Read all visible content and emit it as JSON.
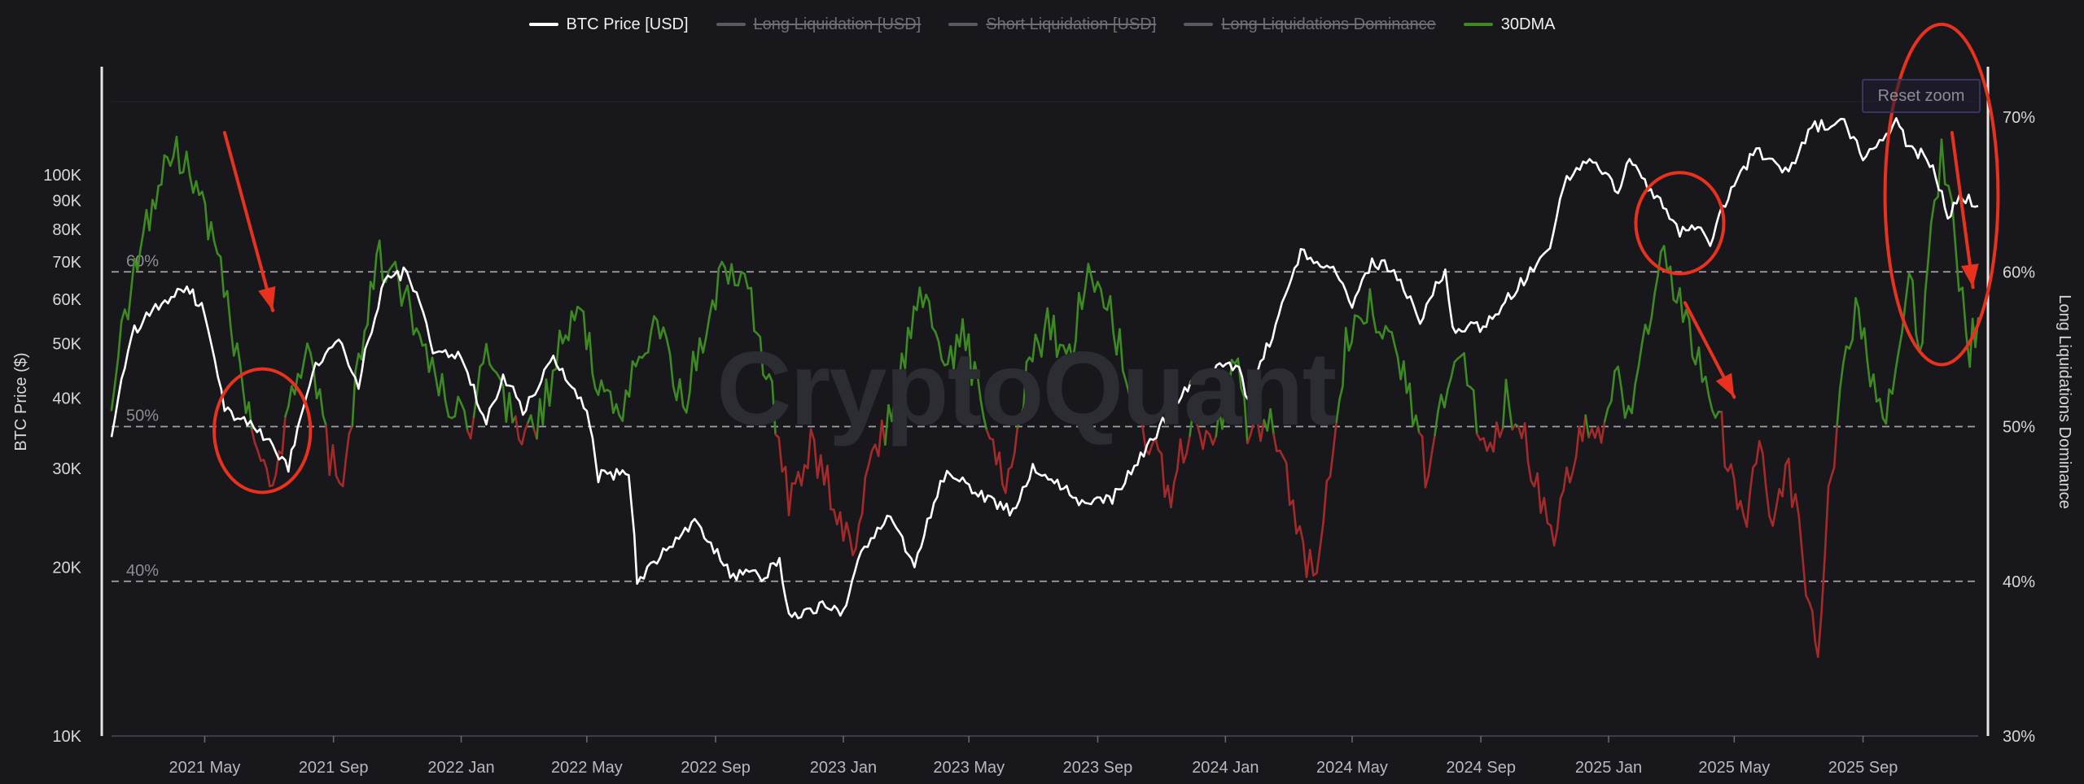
{
  "legend": [
    {
      "label": "BTC Price [USD]",
      "color": "#ffffff",
      "active": true
    },
    {
      "label": "Long Liquidation [USD]",
      "color": "#5a5a62",
      "active": false
    },
    {
      "label": "Short Liquidation [USD]",
      "color": "#5a5a62",
      "active": false
    },
    {
      "label": "Long Liquidations Dominance",
      "color": "#5a5a62",
      "active": false
    },
    {
      "label": "30DMA",
      "color": "#3e8a22",
      "active": true
    }
  ],
  "reset_zoom_label": "Reset zoom",
  "watermark": "CryptoQuant",
  "chart_data": {
    "type": "line",
    "y_left": {
      "label": "BTC Price ($)",
      "scale": "log",
      "ticks": [
        "10K",
        "20K",
        "30K",
        "40K",
        "50K",
        "60K",
        "70K",
        "80K",
        "90K",
        "100K"
      ],
      "tick_values": [
        10000,
        20000,
        30000,
        40000,
        50000,
        60000,
        70000,
        80000,
        90000,
        100000
      ],
      "range": [
        10000,
        135000
      ]
    },
    "y_right": {
      "label": "Long Liquidations Dominance",
      "ticks": [
        "30%",
        "40%",
        "50%",
        "60%",
        "70%"
      ],
      "tick_values": [
        30,
        40,
        50,
        60,
        70
      ],
      "range": [
        30,
        71
      ]
    },
    "x": {
      "ticks": [
        "2021 May",
        "2021 Sep",
        "2022 Jan",
        "2022 May",
        "2022 Sep",
        "2023 Jan",
        "2023 May",
        "2023 Sep",
        "2024 Jan",
        "2024 May",
        "2024 Sep",
        "2025 Jan",
        "2025 May",
        "2025 Sep"
      ],
      "tick_dates": [
        "2021-05-01",
        "2021-09-01",
        "2022-01-01",
        "2022-05-01",
        "2022-09-01",
        "2023-01-01",
        "2023-05-01",
        "2023-09-01",
        "2024-01-01",
        "2024-05-01",
        "2024-09-01",
        "2025-01-01",
        "2025-05-01",
        "2025-09-01"
      ],
      "range": [
        "2021-02-01",
        "2025-12-20"
      ]
    },
    "reference_lines": [
      {
        "value": 60,
        "label": "60%"
      },
      {
        "value": 50,
        "label": "50%"
      },
      {
        "value": 40,
        "label": "40%"
      }
    ],
    "series": [
      {
        "name": "BTC Price [USD]",
        "axis": "left",
        "color": "#ffffff",
        "points": [
          [
            "2021-02-01",
            34000
          ],
          [
            "2021-02-20",
            52000
          ],
          [
            "2021-03-15",
            58000
          ],
          [
            "2021-04-14",
            63000
          ],
          [
            "2021-05-01",
            57000
          ],
          [
            "2021-05-20",
            38000
          ],
          [
            "2021-06-20",
            35000
          ],
          [
            "2021-07-20",
            30000
          ],
          [
            "2021-08-15",
            46000
          ],
          [
            "2021-09-06",
            51000
          ],
          [
            "2021-09-25",
            42000
          ],
          [
            "2021-10-20",
            65000
          ],
          [
            "2021-11-10",
            67000
          ],
          [
            "2021-12-05",
            49000
          ],
          [
            "2022-01-01",
            47000
          ],
          [
            "2022-01-25",
            36000
          ],
          [
            "2022-02-10",
            44000
          ],
          [
            "2022-03-01",
            38000
          ],
          [
            "2022-03-30",
            47000
          ],
          [
            "2022-05-01",
            38000
          ],
          [
            "2022-05-12",
            29000
          ],
          [
            "2022-06-10",
            29500
          ],
          [
            "2022-06-18",
            19000
          ],
          [
            "2022-07-01",
            20000
          ],
          [
            "2022-08-12",
            24000
          ],
          [
            "2022-09-15",
            19500
          ],
          [
            "2022-10-15",
            19200
          ],
          [
            "2022-11-01",
            20500
          ],
          [
            "2022-11-10",
            16500
          ],
          [
            "2022-12-15",
            17000
          ],
          [
            "2023-01-01",
            16600
          ],
          [
            "2023-01-15",
            21000
          ],
          [
            "2023-02-15",
            24500
          ],
          [
            "2023-03-10",
            20000
          ],
          [
            "2023-04-10",
            30000
          ],
          [
            "2023-05-10",
            27000
          ],
          [
            "2023-06-15",
            25000
          ],
          [
            "2023-07-01",
            30500
          ],
          [
            "2023-08-17",
            26000
          ],
          [
            "2023-09-15",
            26500
          ],
          [
            "2023-10-24",
            34000
          ],
          [
            "2023-12-05",
            44000
          ],
          [
            "2024-01-11",
            46000
          ],
          [
            "2024-01-23",
            39500
          ],
          [
            "2024-02-15",
            52000
          ],
          [
            "2024-03-13",
            73000
          ],
          [
            "2024-04-10",
            69000
          ],
          [
            "2024-05-01",
            58000
          ],
          [
            "2024-05-20",
            70000
          ],
          [
            "2024-06-10",
            68000
          ],
          [
            "2024-07-05",
            55000
          ],
          [
            "2024-07-29",
            68000
          ],
          [
            "2024-08-05",
            53000
          ],
          [
            "2024-09-06",
            54000
          ],
          [
            "2024-10-15",
            66000
          ],
          [
            "2024-11-06",
            75000
          ],
          [
            "2024-11-22",
            98000
          ],
          [
            "2024-12-17",
            106000
          ],
          [
            "2025-01-10",
            94000
          ],
          [
            "2025-01-21",
            105000
          ],
          [
            "2025-02-25",
            86000
          ],
          [
            "2025-03-10",
            79000
          ],
          [
            "2025-03-30",
            82000
          ],
          [
            "2025-04-08",
            76000
          ],
          [
            "2025-05-01",
            96000
          ],
          [
            "2025-05-22",
            111000
          ],
          [
            "2025-06-22",
            100000
          ],
          [
            "2025-07-14",
            122000
          ],
          [
            "2025-08-14",
            123000
          ],
          [
            "2025-09-01",
            108000
          ],
          [
            "2025-09-20",
            116000
          ],
          [
            "2025-10-06",
            125000
          ],
          [
            "2025-10-15",
            110000
          ],
          [
            "2025-11-01",
            109000
          ],
          [
            "2025-11-21",
            85000
          ],
          [
            "2025-12-05",
            92000
          ],
          [
            "2025-12-20",
            88000
          ]
        ]
      },
      {
        "name": "30DMA",
        "axis": "right",
        "color_above": "#3e8a22",
        "color_below": "#a52a2a",
        "threshold": 50,
        "points": [
          [
            "2021-02-01",
            52
          ],
          [
            "2021-02-20",
            59
          ],
          [
            "2021-03-15",
            65
          ],
          [
            "2021-04-01",
            68
          ],
          [
            "2021-04-20",
            66
          ],
          [
            "2021-05-10",
            62
          ],
          [
            "2021-06-01",
            54
          ],
          [
            "2021-06-15",
            50
          ],
          [
            "2021-07-05",
            46
          ],
          [
            "2021-07-20",
            52
          ],
          [
            "2021-08-10",
            56
          ],
          [
            "2021-08-25",
            49
          ],
          [
            "2021-09-10",
            45
          ],
          [
            "2021-09-25",
            54
          ],
          [
            "2021-10-15",
            61
          ],
          [
            "2021-11-05",
            59
          ],
          [
            "2021-11-25",
            55
          ],
          [
            "2021-12-20",
            52
          ],
          [
            "2022-01-10",
            50
          ],
          [
            "2022-01-25",
            56
          ],
          [
            "2022-02-10",
            52
          ],
          [
            "2022-02-28",
            49
          ],
          [
            "2022-03-20",
            51
          ],
          [
            "2022-04-05",
            55
          ],
          [
            "2022-04-25",
            58
          ],
          [
            "2022-05-12",
            52
          ],
          [
            "2022-06-01",
            50
          ],
          [
            "2022-06-20",
            55
          ],
          [
            "2022-07-10",
            57
          ],
          [
            "2022-08-01",
            51
          ],
          [
            "2022-08-20",
            56
          ],
          [
            "2022-09-10",
            60
          ],
          [
            "2022-10-05",
            58
          ],
          [
            "2022-10-25",
            52
          ],
          [
            "2022-11-10",
            45
          ],
          [
            "2022-12-01",
            49
          ],
          [
            "2022-12-20",
            46
          ],
          [
            "2023-01-10",
            42
          ],
          [
            "2023-01-25",
            47
          ],
          [
            "2023-02-10",
            50
          ],
          [
            "2023-03-01",
            55
          ],
          [
            "2023-03-15",
            59
          ],
          [
            "2023-04-05",
            54
          ],
          [
            "2023-04-25",
            56
          ],
          [
            "2023-05-15",
            51
          ],
          [
            "2023-06-05",
            47
          ],
          [
            "2023-06-25",
            53
          ],
          [
            "2023-07-15",
            57
          ],
          [
            "2023-08-05",
            54
          ],
          [
            "2023-08-20",
            60
          ],
          [
            "2023-09-10",
            58
          ],
          [
            "2023-10-01",
            53
          ],
          [
            "2023-10-20",
            49
          ],
          [
            "2023-11-10",
            46
          ],
          [
            "2023-12-01",
            51
          ],
          [
            "2023-12-20",
            48
          ],
          [
            "2024-01-10",
            54
          ],
          [
            "2024-01-25",
            49
          ],
          [
            "2024-02-10",
            51
          ],
          [
            "2024-02-25",
            48
          ],
          [
            "2024-03-12",
            43
          ],
          [
            "2024-03-25",
            40
          ],
          [
            "2024-04-10",
            47
          ],
          [
            "2024-04-25",
            55
          ],
          [
            "2024-05-15",
            58
          ],
          [
            "2024-06-05",
            56
          ],
          [
            "2024-06-25",
            52
          ],
          [
            "2024-07-10",
            47
          ],
          [
            "2024-07-25",
            51
          ],
          [
            "2024-08-10",
            55
          ],
          [
            "2024-08-25",
            51
          ],
          [
            "2024-09-10",
            48
          ],
          [
            "2024-09-25",
            52
          ],
          [
            "2024-10-10",
            50
          ],
          [
            "2024-10-25",
            46
          ],
          [
            "2024-11-10",
            43
          ],
          [
            "2024-11-25",
            47
          ],
          [
            "2024-12-10",
            51
          ],
          [
            "2024-12-25",
            49
          ],
          [
            "2025-01-10",
            53
          ],
          [
            "2025-01-20",
            50
          ],
          [
            "2025-02-05",
            56
          ],
          [
            "2025-02-20",
            61
          ],
          [
            "2025-03-10",
            58
          ],
          [
            "2025-03-25",
            55
          ],
          [
            "2025-04-10",
            52
          ],
          [
            "2025-04-25",
            48
          ],
          [
            "2025-05-10",
            44
          ],
          [
            "2025-05-25",
            48
          ],
          [
            "2025-06-10",
            44
          ],
          [
            "2025-06-22",
            47
          ],
          [
            "2025-07-05",
            42
          ],
          [
            "2025-07-12",
            38
          ],
          [
            "2025-07-20",
            36
          ],
          [
            "2025-07-30",
            45
          ],
          [
            "2025-08-10",
            52
          ],
          [
            "2025-08-25",
            58
          ],
          [
            "2025-09-05",
            54
          ],
          [
            "2025-09-20",
            50
          ],
          [
            "2025-10-05",
            54
          ],
          [
            "2025-10-15",
            60
          ],
          [
            "2025-10-25",
            55
          ],
          [
            "2025-11-05",
            62
          ],
          [
            "2025-11-15",
            68
          ],
          [
            "2025-11-25",
            64
          ],
          [
            "2025-12-05",
            58
          ],
          [
            "2025-12-12",
            55
          ],
          [
            "2025-12-20",
            57
          ]
        ]
      }
    ],
    "grid": false
  },
  "annotations": {
    "circles": [
      {
        "date": "2021-06-25",
        "value": 35000,
        "axis": "left",
        "rx_days": 46,
        "ry_decades": 0.11
      },
      {
        "date": "2025-03-10",
        "value": 82000,
        "axis": "left",
        "rx_days": 42,
        "ry_decades": 0.09
      },
      {
        "date": "2025-11-15",
        "value": 65,
        "axis": "right",
        "rx_days": 54,
        "ry_percent": 11
      }
    ],
    "arrows": [
      {
        "from_date": "2021-05-20",
        "from_value": 69,
        "to_date": "2021-07-05",
        "to_value": 57.5,
        "axis": "right"
      },
      {
        "from_date": "2025-03-15",
        "from_value": 58,
        "to_date": "2025-05-01",
        "to_value": 51.9,
        "axis": "right"
      },
      {
        "from_date": "2025-11-25",
        "from_value": 69,
        "to_date": "2025-12-15",
        "to_value": 59,
        "axis": "right"
      }
    ],
    "color": "#e8321e"
  }
}
